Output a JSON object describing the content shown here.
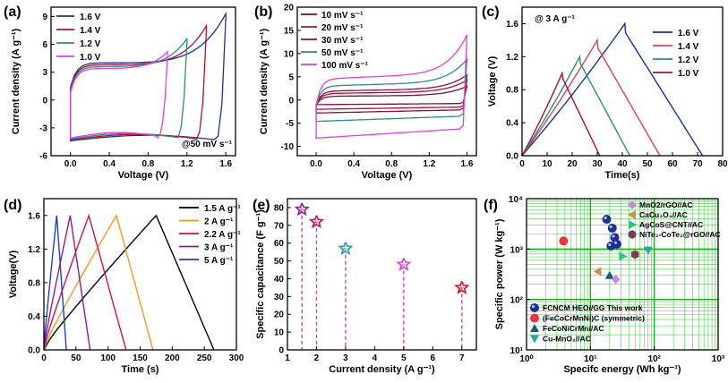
{
  "colors": {
    "blue": "#1f2f8f",
    "red": "#b0102e",
    "teal": "#2a8c8c",
    "pink": "#e040d8",
    "maroon": "#7a1035",
    "magenta": "#c0108a",
    "orange": "#f39a1e",
    "black": "#000000",
    "green_grid": "#22c422",
    "green_axis": "#10b010"
  },
  "chart_data": [
    {
      "id": "a",
      "panel_label": "(a)",
      "type": "line",
      "title": "",
      "xlabel": "Voltage (V)",
      "ylabel": "Current density (A g⁻¹)",
      "xlim": [
        -0.2,
        1.7
      ],
      "ylim": [
        -6,
        10
      ],
      "xticks": [
        "0.0",
        "0.4",
        "0.8",
        "1.2",
        "1.6"
      ],
      "yticks": [
        "-6",
        "-3",
        "0",
        "3",
        "6",
        "9"
      ],
      "annotation": "@50 mV s⁻¹",
      "series": [
        {
          "name": "1.6 V",
          "color": "#1f2f8f",
          "vmax": 1.6,
          "imax": 8.9,
          "plateau": 2.8,
          "imin": -4.4
        },
        {
          "name": "1.4 V",
          "color": "#b0102e",
          "vmax": 1.4,
          "imax": 7.6,
          "plateau": 2.6,
          "imin": -4.3
        },
        {
          "name": "1.2 V",
          "color": "#2a8c8c",
          "vmax": 1.2,
          "imax": 6.2,
          "plateau": 2.4,
          "imin": -4.2
        },
        {
          "name": "1.0 V",
          "color": "#e040d8",
          "vmax": 1.0,
          "imax": 4.8,
          "plateau": 2.2,
          "imin": -4.1
        }
      ]
    },
    {
      "id": "b",
      "panel_label": "(b)",
      "type": "line",
      "xlabel": "Voltage (V)",
      "ylabel": "Current density (A g⁻¹)",
      "xlim": [
        -0.2,
        1.7
      ],
      "ylim": [
        -12,
        20
      ],
      "xticks": [
        "0.0",
        "0.4",
        "0.8",
        "1.2",
        "1.6"
      ],
      "yticks": [
        "-10",
        "-5",
        "0",
        "5",
        "10",
        "15",
        "20"
      ],
      "series": [
        {
          "name": "10 mV s⁻¹",
          "color": "#7a1035",
          "imax": 3.0,
          "plateau": 0.8,
          "imin": -1.0
        },
        {
          "name": "20 mV s⁻¹",
          "color": "#b0102e",
          "imax": 4.3,
          "plateau": 1.4,
          "imin": -2.0
        },
        {
          "name": "30 mV s⁻¹",
          "color": "#8a1040",
          "imax": 5.4,
          "plateau": 1.9,
          "imin": -2.8
        },
        {
          "name": "50 mV s⁻¹",
          "color": "#2a8c8c",
          "imax": 8.8,
          "plateau": 3.0,
          "imin": -4.6
        },
        {
          "name": "100 mV s⁻¹",
          "color": "#e040d8",
          "imax": 14.0,
          "plateau": 4.5,
          "imin": -8.2
        }
      ]
    },
    {
      "id": "c",
      "panel_label": "(c)",
      "type": "line",
      "xlabel": "Time(s)",
      "ylabel": "Voltage (V)",
      "xlim": [
        0,
        80
      ],
      "ylim": [
        0,
        1.8
      ],
      "xticks": [
        "0",
        "10",
        "20",
        "30",
        "40",
        "50",
        "60",
        "70",
        "80"
      ],
      "yticks": [
        "0.0",
        "0.4",
        "0.8",
        "1.2",
        "1.6"
      ],
      "annotation": "@ 3 A g⁻¹",
      "series": [
        {
          "name": "1.6 V",
          "color": "#1f2f8f",
          "vmax": 1.6,
          "t_peak": 41,
          "t_end": 72
        },
        {
          "name": "1.4 V",
          "color": "#e0405a",
          "vmax": 1.4,
          "t_peak": 30,
          "t_end": 55
        },
        {
          "name": "1.2 V",
          "color": "#2a8c8c",
          "vmax": 1.2,
          "t_peak": 23,
          "t_end": 43
        },
        {
          "name": "1.0 V",
          "color": "#b0102e",
          "vmax": 1.0,
          "t_peak": 16,
          "t_end": 31
        }
      ]
    },
    {
      "id": "d",
      "panel_label": "(d)",
      "type": "line",
      "xlabel": "Time (s)",
      "ylabel": "Voltage(V)",
      "xlim": [
        0,
        300
      ],
      "ylim": [
        0,
        1.8
      ],
      "xticks": [
        "0",
        "50",
        "100",
        "150",
        "200",
        "250",
        "300"
      ],
      "yticks": [
        "0.0",
        "0.4",
        "0.8",
        "1.2",
        "1.6"
      ],
      "series": [
        {
          "name": "1.5 A g⁻¹",
          "color": "#000000",
          "t_peak": 175,
          "t_end": 265
        },
        {
          "name": "2 A g⁻¹",
          "color": "#f39a1e",
          "t_peak": 113,
          "t_end": 170
        },
        {
          "name": "2.2 A g⁻¹",
          "color": "#d6104a",
          "t_peak": 70,
          "t_end": 128
        },
        {
          "name": "3 A g⁻¹",
          "color": "#9b1a8a",
          "t_peak": 41,
          "t_end": 72
        },
        {
          "name": "5 A g⁻¹",
          "color": "#1f3fcf",
          "t_peak": 20,
          "t_end": 35
        }
      ]
    },
    {
      "id": "e",
      "panel_label": "(e)",
      "type": "scatter",
      "xlabel": "Current density (A g⁻¹)",
      "ylabel": "Specific capacitance (F g⁻¹)",
      "xlim": [
        1,
        7.5
      ],
      "ylim": [
        0,
        85
      ],
      "xticks": [
        "1",
        "2",
        "3",
        "4",
        "5",
        "6",
        "7"
      ],
      "yticks": [
        "0",
        "10",
        "20",
        "30",
        "40",
        "50",
        "60",
        "70",
        "80"
      ],
      "points": [
        {
          "x": 1.5,
          "y": 79,
          "color": "#9b1a8a"
        },
        {
          "x": 2,
          "y": 72,
          "color": "#c01060"
        },
        {
          "x": 3,
          "y": 57,
          "color": "#2aa0a0"
        },
        {
          "x": 5,
          "y": 48,
          "color": "#e040d8"
        },
        {
          "x": 7,
          "y": 35,
          "color": "#d0102a"
        }
      ]
    },
    {
      "id": "f",
      "panel_label": "(f)",
      "type": "scatter",
      "xlabel": "Specifc energy (Wh kg⁻¹)",
      "ylabel": "Specific power (W kg⁻¹)",
      "xscale": "log",
      "yscale": "log",
      "xlim": [
        1,
        1000
      ],
      "ylim": [
        10,
        10000
      ],
      "xticks": [
        "10⁰",
        "10¹",
        "10²",
        "10³"
      ],
      "yticks": [
        "10¹",
        "10²",
        "10³",
        "10⁴"
      ],
      "series": [
        {
          "name": "FCNCM HEO//GG This work",
          "marker": "circle-3d",
          "color": "#1c2e9a",
          "points": [
            [
              18,
              3900
            ],
            [
              22,
              2600
            ],
            [
              24,
              1700
            ],
            [
              26,
              1250
            ],
            [
              21,
              1150
            ]
          ]
        },
        {
          "name": "(FeCoCrMnNi)C (symmetric)",
          "marker": "circle",
          "color": "#e8343a",
          "points": [
            [
              3.8,
              1450
            ]
          ]
        },
        {
          "name": "FeCoNiCrMn//AC",
          "marker": "triangle-up",
          "color": "#1a5a86",
          "points": [
            [
              20,
              300
            ]
          ]
        },
        {
          "name": "Cu-MnO₂//AC",
          "marker": "triangle-down",
          "color": "#26a89a",
          "points": [
            [
              80,
              950
            ]
          ]
        },
        {
          "name": "MnO2/rGO//AC",
          "marker": "diamond",
          "color": "#c88ad8",
          "points": [
            [
              25,
              250
            ]
          ]
        },
        {
          "name": "CaCu₃O₄//AC",
          "marker": "triangle-left",
          "color": "#c8924a",
          "points": [
            [
              13,
              360
            ]
          ]
        },
        {
          "name": "AgCoS@CNT//AC",
          "marker": "triangle-right",
          "color": "#28c878",
          "points": [
            [
              32,
              720
            ]
          ]
        },
        {
          "name": "NiTe₂-CoTe₂@rGO//AC",
          "marker": "hexagon",
          "color": "#7a3a5a",
          "points": [
            [
              50,
              780
            ]
          ]
        }
      ]
    }
  ]
}
